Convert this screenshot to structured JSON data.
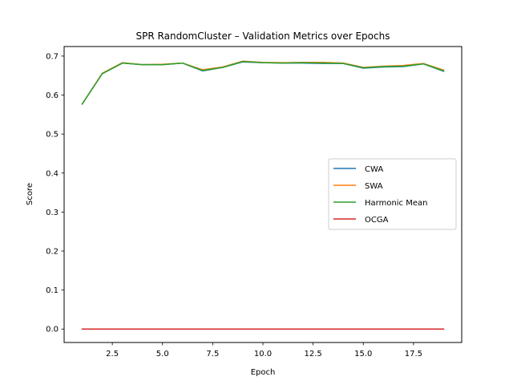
{
  "chart_data": {
    "type": "line",
    "title": "SPR RandomCluster – Validation Metrics over Epochs",
    "xlabel": "Epoch",
    "ylabel": "Score",
    "xlim": [
      0.1,
      19.9
    ],
    "ylim": [
      -0.0345,
      0.7245
    ],
    "x_ticks": [
      2.5,
      5.0,
      7.5,
      10.0,
      12.5,
      15.0,
      17.5
    ],
    "x_tick_labels": [
      "2.5",
      "5.0",
      "7.5",
      "10.0",
      "12.5",
      "15.0",
      "17.5"
    ],
    "y_ticks": [
      0.0,
      0.1,
      0.2,
      0.3,
      0.4,
      0.5,
      0.6,
      0.7
    ],
    "y_tick_labels": [
      "0.0",
      "0.1",
      "0.2",
      "0.3",
      "0.4",
      "0.5",
      "0.6",
      "0.7"
    ],
    "grid": false,
    "legend_position": "center-right",
    "x": [
      1,
      2,
      3,
      4,
      5,
      6,
      7,
      8,
      9,
      10,
      11,
      12,
      13,
      14,
      15,
      16,
      17,
      18,
      19
    ],
    "series": [
      {
        "name": "CWA",
        "color": "#1f77b4",
        "values": [
          0.577,
          0.655,
          0.682,
          0.678,
          0.678,
          0.682,
          0.662,
          0.671,
          0.685,
          0.683,
          0.682,
          0.682,
          0.681,
          0.681,
          0.669,
          0.672,
          0.673,
          0.68,
          0.661
        ]
      },
      {
        "name": "SWA",
        "color": "#ff7f0e",
        "values": [
          0.577,
          0.656,
          0.683,
          0.678,
          0.679,
          0.682,
          0.665,
          0.672,
          0.687,
          0.684,
          0.683,
          0.684,
          0.684,
          0.682,
          0.671,
          0.674,
          0.676,
          0.681,
          0.664
        ]
      },
      {
        "name": "Harmonic Mean",
        "color": "#2ca02c",
        "values": [
          0.577,
          0.655,
          0.682,
          0.678,
          0.678,
          0.682,
          0.663,
          0.671,
          0.686,
          0.683,
          0.682,
          0.683,
          0.682,
          0.681,
          0.67,
          0.673,
          0.674,
          0.68,
          0.662
        ]
      },
      {
        "name": "OCGA",
        "color": "#d62728",
        "values": [
          0.0,
          0.0,
          0.0,
          0.0,
          0.0,
          0.0,
          0.0,
          0.0,
          0.0,
          0.0,
          0.0,
          0.0,
          0.0,
          0.0,
          0.0,
          0.0,
          0.0,
          0.0,
          0.0
        ]
      }
    ]
  }
}
